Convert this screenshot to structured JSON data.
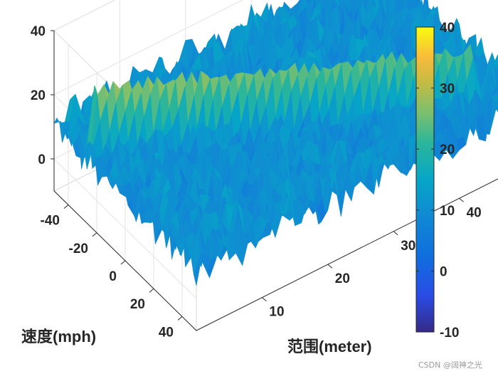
{
  "chart_data": {
    "type": "surface",
    "title": "",
    "xlabel": "范围(meter)",
    "ylabel": "速度(mph)",
    "zlabel": "",
    "x_ticks": [
      10,
      20,
      30,
      40
    ],
    "y_ticks": [
      -40,
      -20,
      0,
      20,
      40
    ],
    "z_ticks": [
      0,
      20,
      40
    ],
    "xlim": [
      0,
      50
    ],
    "ylim": [
      -50,
      50
    ],
    "zlim": [
      -10,
      40
    ],
    "colorbar": {
      "colormap": "parula",
      "range": [
        -10,
        40
      ],
      "ticks": [
        -10,
        0,
        10,
        20,
        30,
        40
      ]
    },
    "surface": {
      "noise_floor_level": 10,
      "noise_amplitude": 6,
      "target_ridge": {
        "description": "bright diagonal ridge (moving target)",
        "start": {
          "range_m": 2,
          "speed_mph": -30,
          "level": 30
        },
        "end": {
          "range_m": 45,
          "speed_mph": 35,
          "level": 25
        }
      },
      "peaks": [
        {
          "range_m": 2,
          "speed_mph": -45,
          "level": 22
        },
        {
          "range_m": 6,
          "speed_mph": -10,
          "level": 15
        }
      ]
    }
  },
  "watermark": "CSDN @阔神之光"
}
